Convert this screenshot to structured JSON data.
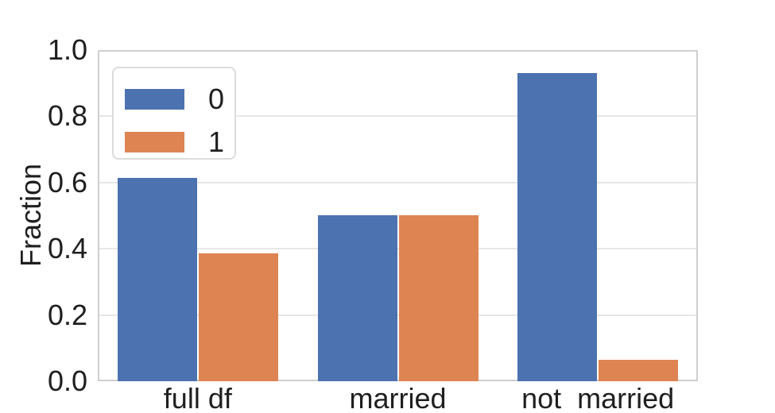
{
  "chart_data": {
    "type": "bar",
    "title": "",
    "xlabel": "",
    "ylabel": "Fraction",
    "categories": [
      "full df",
      "married",
      "not  married"
    ],
    "series": [
      {
        "name": "0",
        "color": "#4C72B0",
        "values": [
          0.615,
          0.5,
          0.93
        ]
      },
      {
        "name": "1",
        "color": "#DD8452",
        "values": [
          0.385,
          0.5,
          0.065
        ]
      }
    ],
    "ylim": [
      0.0,
      1.0
    ],
    "ytick_labels": [
      "0.0",
      "0.2",
      "0.4",
      "0.6",
      "0.8",
      "1.0"
    ],
    "grid": true,
    "legend_position": "upper left"
  },
  "colors": {
    "grid_line": "#e7e7e7",
    "spine": "#cfcfcf",
    "text": "#1f1f1f",
    "background": "#ffffff"
  }
}
